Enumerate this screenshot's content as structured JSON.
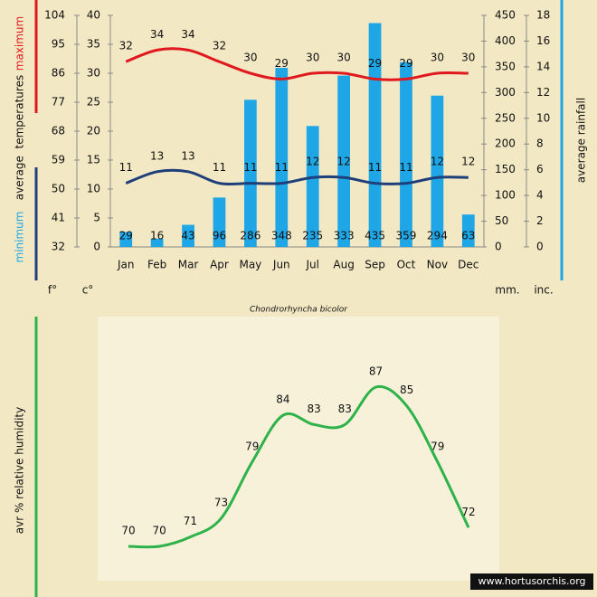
{
  "chart_data": [
    {
      "type": "combo",
      "categories": [
        "Jan",
        "Feb",
        "Mar",
        "Apr",
        "May",
        "Jun",
        "Jul",
        "Aug",
        "Sep",
        "Oct",
        "Nov",
        "Dec"
      ],
      "series": [
        {
          "name": "average rainfall",
          "kind": "bar",
          "axis": "y2",
          "color": "#1fa6e6",
          "values": [
            29,
            16,
            43,
            96,
            286,
            348,
            235,
            333,
            435,
            359,
            294,
            63
          ]
        },
        {
          "name": "maximum",
          "kind": "line",
          "axis": "y",
          "color": "#e0191f",
          "values": [
            32,
            34,
            34,
            32,
            30,
            29,
            30,
            30,
            29,
            29,
            30,
            30
          ]
        },
        {
          "name": "minimum",
          "kind": "line",
          "axis": "y",
          "color": "#1f3f7a",
          "values": [
            11,
            13,
            13,
            11,
            11,
            11,
            12,
            12,
            11,
            11,
            12,
            12
          ]
        }
      ],
      "y_title": "average  temperatures",
      "min_title_color": "#1fa6e6",
      "ylim": [
        0,
        40
      ],
      "yticks": [
        0,
        5,
        10,
        15,
        20,
        25,
        30,
        35,
        40
      ],
      "y_label": "c°",
      "yflim": [
        32,
        104
      ],
      "yfticks": [
        32,
        41,
        50,
        59,
        68,
        77,
        86,
        95,
        104
      ],
      "yf_label": "f°",
      "y2lim": [
        0,
        450
      ],
      "y2ticks": [
        0,
        50,
        100,
        150,
        200,
        250,
        300,
        350,
        400,
        450
      ],
      "y2_label": "mm.",
      "y3lim": [
        0,
        18
      ],
      "y3ticks": [
        0,
        2,
        4,
        6,
        8,
        10,
        12,
        14,
        16,
        18
      ],
      "y3_label": "inc.",
      "caption": "Chondrorhyncha bicolor"
    },
    {
      "type": "line",
      "color": "#2eb34a",
      "y_title": "avr % relative humidity",
      "values": [
        70,
        70,
        71,
        73,
        79,
        84,
        83,
        83,
        87,
        85,
        79,
        72
      ]
    }
  ],
  "watermark": "www.hortusorchis.org"
}
